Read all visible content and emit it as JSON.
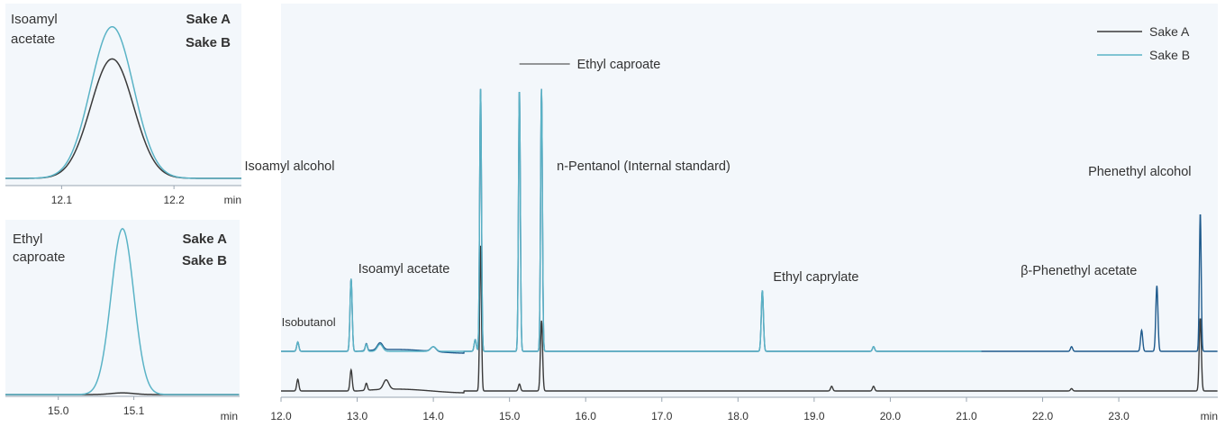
{
  "colors": {
    "sake_a": "#3a3a3a",
    "sake_b": "#1e5a8c",
    "sake_b_light": "#5ab3c6",
    "plot_bg": "#f3f7fb",
    "legend_b_text": "#2a7f9c"
  },
  "chart_data": [
    {
      "id": "main",
      "type": "line",
      "title": "",
      "xlabel": "min",
      "ylabel": "",
      "xlim": [
        12.0,
        24.3
      ],
      "x_ticks": [
        "12.0",
        "13.0",
        "14.0",
        "15.0",
        "16.0",
        "17.0",
        "18.0",
        "19.0",
        "20.0",
        "21.0",
        "22.0",
        "23.0"
      ],
      "grid": false,
      "legend": {
        "position": "top-right",
        "entries": [
          "Sake A",
          "Sake B"
        ]
      },
      "series": [
        {
          "name": "Sake A",
          "baseline": "lower",
          "peaks": [
            {
              "t": 12.22,
              "h": 0.05
            },
            {
              "t": 12.92,
              "h": 0.09
            },
            {
              "t": 13.12,
              "h": 0.03
            },
            {
              "t": 13.38,
              "h": 0.04
            },
            {
              "t": 14.62,
              "h": 0.62
            },
            {
              "t": 15.13,
              "h": 0.03
            },
            {
              "t": 15.42,
              "h": 0.3
            },
            {
              "t": 19.23,
              "h": 0.02
            },
            {
              "t": 19.78,
              "h": 0.02
            },
            {
              "t": 22.38,
              "h": 0.01
            },
            {
              "t": 24.07,
              "h": 0.31
            }
          ]
        },
        {
          "name": "Sake B",
          "baseline": "upper",
          "peaks": [
            {
              "t": 12.22,
              "h": 0.04
            },
            {
              "t": 12.92,
              "h": 0.31
            },
            {
              "t": 13.12,
              "h": 0.03
            },
            {
              "t": 13.3,
              "h": 0.03
            },
            {
              "t": 14.0,
              "h": 0.02
            },
            {
              "t": 14.55,
              "h": 0.05
            },
            {
              "t": 14.62,
              "h": 1.12
            },
            {
              "t": 15.13,
              "h": 1.12
            },
            {
              "t": 15.42,
              "h": 1.12
            },
            {
              "t": 18.32,
              "h": 0.26
            },
            {
              "t": 19.78,
              "h": 0.02
            },
            {
              "t": 22.38,
              "h": 0.02
            },
            {
              "t": 23.3,
              "h": 0.09
            },
            {
              "t": 23.5,
              "h": 0.28
            },
            {
              "t": 24.07,
              "h": 0.59
            }
          ]
        }
      ],
      "annotations": [
        {
          "text": "Isobutanol",
          "x": 12.22
        },
        {
          "text": "Isoamyl acetate",
          "x": 12.92
        },
        {
          "text": "Isoamyl alcohol",
          "x": 14.62
        },
        {
          "text": "Ethyl caproate",
          "x": 15.13
        },
        {
          "text": "n-Pentanol (Internal standard)",
          "x": 15.42
        },
        {
          "text": "Ethyl caprylate",
          "x": 18.32
        },
        {
          "text": "β-Phenethyl acetate",
          "x": 23.5
        },
        {
          "text": "Phenethyl alcohol",
          "x": 24.07
        }
      ]
    },
    {
      "id": "inset_isoamyl",
      "type": "line",
      "title": "Isoamyl\nacetate",
      "xlabel": "min",
      "xlim": [
        12.05,
        12.26
      ],
      "x_ticks": [
        "12.1",
        "12.2"
      ],
      "legend": {
        "position": "top-right",
        "entries": [
          "Sake A",
          "Sake B"
        ]
      },
      "series": [
        {
          "name": "Sake A",
          "peak_x": 12.145,
          "height": 0.78
        },
        {
          "name": "Sake B",
          "peak_x": 12.145,
          "height": 0.99
        }
      ]
    },
    {
      "id": "inset_ethyl",
      "type": "line",
      "title": "Ethyl\ncaproate",
      "xlabel": "min",
      "xlim": [
        14.93,
        15.24
      ],
      "x_ticks": [
        "15.0",
        "15.1"
      ],
      "legend": {
        "position": "top-right",
        "entries": [
          "Sake A",
          "Sake B"
        ]
      },
      "series": [
        {
          "name": "Sake A",
          "peak_x": 15.085,
          "height": 0.01
        },
        {
          "name": "Sake B",
          "peak_x": 15.085,
          "height": 0.99
        }
      ]
    }
  ]
}
